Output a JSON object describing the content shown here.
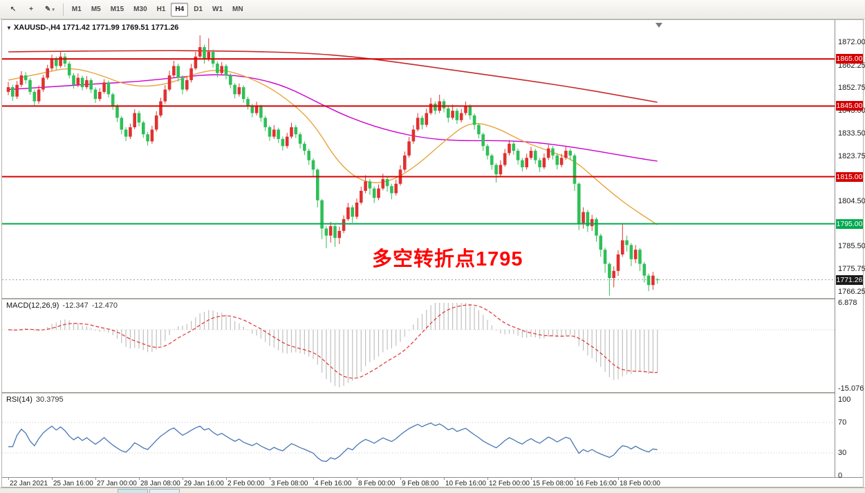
{
  "toolbar": {
    "tools": [
      {
        "name": "pointer-tool",
        "glyph": "↖"
      },
      {
        "name": "crosshair-tool",
        "glyph": "+"
      },
      {
        "name": "draw-tool",
        "glyph": "✎"
      }
    ],
    "timeframes": [
      "M1",
      "M5",
      "M15",
      "M30",
      "H1",
      "H4",
      "D1",
      "W1",
      "MN"
    ],
    "active_timeframe": "H4"
  },
  "chart_data": {
    "type": "candlestick",
    "symbol": "XAUUSD-",
    "timeframe": "H4",
    "title": "XAUUSD-,H4 1771.42 1771.99 1769.51 1771.26",
    "current": {
      "open": 1771.42,
      "high": 1771.99,
      "low": 1769.51,
      "close": 1771.26
    },
    "up_color": "#e03030",
    "down_color": "#2fbf57",
    "candles": [
      [
        1851,
        1855.2,
        1849.6,
        1853
      ],
      [
        1853,
        1854,
        1847.2,
        1849
      ],
      [
        1849,
        1855.6,
        1848,
        1854
      ],
      [
        1854,
        1859.8,
        1853.1,
        1858
      ],
      [
        1858,
        1859.4,
        1854.5,
        1856
      ],
      [
        1856,
        1856.9,
        1849.8,
        1851
      ],
      [
        1851,
        1852,
        1845.3,
        1847
      ],
      [
        1847,
        1853.7,
        1846,
        1852
      ],
      [
        1852,
        1858.2,
        1851,
        1857
      ],
      [
        1857,
        1862.5,
        1856.2,
        1861
      ],
      [
        1861,
        1866.8,
        1860,
        1865
      ],
      [
        1865,
        1866,
        1860.4,
        1862
      ],
      [
        1862,
        1868.3,
        1861.2,
        1866
      ],
      [
        1866,
        1867.5,
        1861.5,
        1863
      ],
      [
        1863,
        1864,
        1856.7,
        1858
      ],
      [
        1858,
        1859,
        1852.4,
        1854
      ],
      [
        1854,
        1858.8,
        1853,
        1857
      ],
      [
        1857,
        1857.9,
        1851.6,
        1853
      ],
      [
        1853,
        1857.7,
        1852.2,
        1856
      ],
      [
        1856,
        1856.8,
        1850.5,
        1852
      ],
      [
        1852,
        1852.9,
        1846.3,
        1848
      ],
      [
        1848,
        1852.6,
        1847,
        1851
      ],
      [
        1851,
        1856.4,
        1850.2,
        1855
      ],
      [
        1855,
        1855.8,
        1848.6,
        1850
      ],
      [
        1850,
        1850.7,
        1843.4,
        1845
      ],
      [
        1845,
        1845.9,
        1838.2,
        1840
      ],
      [
        1840,
        1840.8,
        1833,
        1835
      ],
      [
        1835,
        1836,
        1830.1,
        1832
      ],
      [
        1832,
        1837.5,
        1831,
        1836
      ],
      [
        1836,
        1843.6,
        1835.2,
        1842
      ],
      [
        1842,
        1843,
        1836.4,
        1838
      ],
      [
        1838,
        1838.7,
        1831.5,
        1833
      ],
      [
        1833,
        1834,
        1828.2,
        1830
      ],
      [
        1830,
        1836.6,
        1829,
        1835
      ],
      [
        1835,
        1842.8,
        1834.1,
        1841
      ],
      [
        1841,
        1848.5,
        1840.2,
        1847
      ],
      [
        1847,
        1853.9,
        1846,
        1852
      ],
      [
        1852,
        1860,
        1851.3,
        1858
      ],
      [
        1858,
        1864.2,
        1857,
        1862
      ],
      [
        1862,
        1863,
        1855.4,
        1857
      ],
      [
        1857,
        1858,
        1850,
        1852
      ],
      [
        1852,
        1857.8,
        1851.2,
        1856
      ],
      [
        1856,
        1862.9,
        1855,
        1861
      ],
      [
        1861,
        1868,
        1860.3,
        1866
      ],
      [
        1866,
        1875,
        1865.2,
        1870
      ],
      [
        1870,
        1871,
        1863,
        1865
      ],
      [
        1865,
        1873.8,
        1864,
        1868
      ],
      [
        1868,
        1869,
        1861.4,
        1863
      ],
      [
        1863,
        1864,
        1857.2,
        1859
      ],
      [
        1859,
        1863.7,
        1858,
        1862
      ],
      [
        1862,
        1862.8,
        1856.3,
        1858
      ],
      [
        1858,
        1858.9,
        1852.5,
        1854
      ],
      [
        1854,
        1854.7,
        1848.2,
        1850
      ],
      [
        1850,
        1854.6,
        1849,
        1853
      ],
      [
        1853,
        1853.8,
        1846.4,
        1848
      ],
      [
        1848,
        1849,
        1843.5,
        1845
      ],
      [
        1845,
        1846,
        1840.2,
        1842
      ],
      [
        1842,
        1846.8,
        1841,
        1845
      ],
      [
        1845,
        1845.6,
        1838.3,
        1840
      ],
      [
        1840,
        1840.9,
        1834.4,
        1836
      ],
      [
        1836,
        1836.7,
        1830.2,
        1832
      ],
      [
        1832,
        1836.9,
        1831,
        1835
      ],
      [
        1835,
        1835.8,
        1829.3,
        1831
      ],
      [
        1831,
        1832,
        1826.1,
        1828
      ],
      [
        1828,
        1833.6,
        1827,
        1832
      ],
      [
        1832,
        1837.9,
        1831.2,
        1836
      ],
      [
        1836,
        1837,
        1831.4,
        1833
      ],
      [
        1833,
        1833.8,
        1827,
        1829
      ],
      [
        1829,
        1830,
        1824.2,
        1826
      ],
      [
        1826,
        1826.9,
        1820,
        1822
      ],
      [
        1822,
        1822.8,
        1815.3,
        1818
      ],
      [
        1818,
        1818.5,
        1802,
        1805
      ],
      [
        1805,
        1805.5,
        1788.5,
        1793
      ],
      [
        1793,
        1794,
        1784.6,
        1790
      ],
      [
        1790,
        1795.8,
        1787,
        1794
      ],
      [
        1794,
        1794.9,
        1785.2,
        1789
      ],
      [
        1789,
        1793.8,
        1786.4,
        1792
      ],
      [
        1792,
        1798.6,
        1791,
        1797
      ],
      [
        1797,
        1803.9,
        1796.2,
        1802
      ],
      [
        1802,
        1803,
        1795.5,
        1798
      ],
      [
        1798,
        1805.7,
        1797,
        1804
      ],
      [
        1804,
        1810.8,
        1803.2,
        1809
      ],
      [
        1809,
        1815.6,
        1808,
        1813
      ],
      [
        1813,
        1814,
        1807.3,
        1810
      ],
      [
        1810,
        1810.9,
        1803.8,
        1806
      ],
      [
        1806,
        1811.7,
        1805,
        1810
      ],
      [
        1810,
        1816.3,
        1809.2,
        1814
      ],
      [
        1814,
        1815,
        1808.6,
        1811
      ],
      [
        1811,
        1812,
        1805.4,
        1808
      ],
      [
        1808,
        1813.8,
        1807,
        1812
      ],
      [
        1812,
        1819.9,
        1811.2,
        1818
      ],
      [
        1818,
        1825.7,
        1817,
        1824
      ],
      [
        1824,
        1831.8,
        1823.1,
        1830
      ],
      [
        1830,
        1836.9,
        1829,
        1835
      ],
      [
        1835,
        1842,
        1834.2,
        1840
      ],
      [
        1840,
        1841,
        1835.1,
        1837
      ],
      [
        1837,
        1843.9,
        1836,
        1842
      ],
      [
        1842,
        1848.5,
        1841.2,
        1846
      ],
      [
        1846,
        1847,
        1841.4,
        1843
      ],
      [
        1843,
        1849.8,
        1842,
        1847
      ],
      [
        1847,
        1848,
        1842.3,
        1844
      ],
      [
        1844,
        1844.8,
        1838,
        1840
      ],
      [
        1840,
        1845.6,
        1839.2,
        1843
      ],
      [
        1843,
        1844,
        1837.4,
        1839
      ],
      [
        1839,
        1843.8,
        1838,
        1842
      ],
      [
        1842,
        1846.9,
        1841.1,
        1845
      ],
      [
        1845,
        1845.8,
        1839.3,
        1841
      ],
      [
        1841,
        1841.9,
        1835,
        1837
      ],
      [
        1837,
        1837.7,
        1831.2,
        1833
      ],
      [
        1833,
        1833.8,
        1826,
        1828
      ],
      [
        1828,
        1828.9,
        1822.3,
        1824
      ],
      [
        1824,
        1824.7,
        1818,
        1820
      ],
      [
        1820,
        1820.8,
        1812.5,
        1816
      ],
      [
        1816,
        1821.9,
        1815,
        1820
      ],
      [
        1820,
        1826.8,
        1819.2,
        1825
      ],
      [
        1825,
        1830.6,
        1824,
        1829
      ],
      [
        1829,
        1830,
        1824.3,
        1826
      ],
      [
        1826,
        1826.9,
        1820.1,
        1822
      ],
      [
        1822,
        1823,
        1817.2,
        1819
      ],
      [
        1819,
        1824.8,
        1818,
        1823
      ],
      [
        1823,
        1827.7,
        1822.2,
        1826
      ],
      [
        1826,
        1826.8,
        1820.4,
        1822
      ],
      [
        1822,
        1823,
        1817,
        1819
      ],
      [
        1819,
        1824.9,
        1818.2,
        1823
      ],
      [
        1823,
        1828.6,
        1822,
        1827
      ],
      [
        1827,
        1828,
        1822.3,
        1824
      ],
      [
        1824,
        1824.9,
        1818.1,
        1820
      ],
      [
        1820,
        1824.7,
        1819,
        1823
      ],
      [
        1823,
        1827.9,
        1822.2,
        1826
      ],
      [
        1826,
        1827,
        1822,
        1824
      ],
      [
        1824,
        1824.8,
        1809,
        1812
      ],
      [
        1812,
        1812.6,
        1792.3,
        1795
      ],
      [
        1795,
        1802,
        1793,
        1800
      ],
      [
        1800,
        1800.9,
        1791.5,
        1794
      ],
      [
        1794,
        1798.8,
        1792,
        1797
      ],
      [
        1797,
        1797.7,
        1787.4,
        1790
      ],
      [
        1790,
        1790.8,
        1781,
        1784
      ],
      [
        1784,
        1784.9,
        1774.2,
        1778
      ],
      [
        1778,
        1778.6,
        1764.5,
        1772
      ],
      [
        1772,
        1776.9,
        1768,
        1775
      ],
      [
        1775,
        1783.8,
        1772.9,
        1782
      ],
      [
        1782,
        1795,
        1781,
        1788
      ],
      [
        1788,
        1790,
        1783.2,
        1786
      ],
      [
        1786,
        1786.8,
        1777,
        1780
      ],
      [
        1780,
        1786,
        1778.3,
        1784
      ],
      [
        1784,
        1784.7,
        1775,
        1778
      ],
      [
        1778,
        1778.8,
        1770.1,
        1773
      ],
      [
        1773,
        1773.9,
        1766.4,
        1769
      ],
      [
        1769,
        1774.6,
        1767,
        1773
      ],
      [
        1771.4,
        1772,
        1769.5,
        1771.3
      ]
    ],
    "x_labels": [
      "22 Jan 2021",
      "25 Jan 16:00",
      "27 Jan 00:00",
      "28 Jan 08:00",
      "29 Jan 16:00",
      "2 Feb 00:00",
      "3 Feb 08:00",
      "4 Feb 16:00",
      "8 Feb 00:00",
      "9 Feb 08:00",
      "10 Feb 16:00",
      "12 Feb 00:00",
      "15 Feb 08:00",
      "16 Feb 16:00",
      "18 Feb 00:00"
    ],
    "label_every": 10,
    "price_axis": {
      "top": 1881.5,
      "bottom": 1763.5,
      "ticks": [
        "1872.00",
        "1862.25",
        "1852.75",
        "1843.00",
        "1833.50",
        "1823.75",
        "1804.50",
        "1785.50",
        "1775.75",
        "1766.25"
      ]
    },
    "hlines": [
      {
        "price": 1865.0,
        "label": "1865.00",
        "color": "#d40000"
      },
      {
        "price": 1845.0,
        "label": "1845.00",
        "color": "#d40000"
      },
      {
        "price": 1815.0,
        "label": "1815.00",
        "color": "#d40000"
      },
      {
        "price": 1795.0,
        "label": "1795.00",
        "color": "#00a94f"
      }
    ],
    "current_price": {
      "value": 1771.26,
      "label": "1771.26",
      "badge_color": "#1a1a1a"
    },
    "moving_averages": [
      {
        "name": "ma-slow",
        "color": "#c62828",
        "width": 1.6,
        "points": [
          [
            0,
            1868
          ],
          [
            30,
            1868.6
          ],
          [
            50,
            1868.4
          ],
          [
            68,
            1867.6
          ],
          [
            80,
            1865.8
          ],
          [
            90,
            1863.4
          ],
          [
            100,
            1860.8
          ],
          [
            110,
            1858.2
          ],
          [
            120,
            1855.6
          ],
          [
            130,
            1852.8
          ],
          [
            140,
            1849.6
          ],
          [
            149,
            1846.6
          ]
        ]
      },
      {
        "name": "ma-medium",
        "color": "#cc00cc",
        "width": 1.4,
        "points": [
          [
            0,
            1852
          ],
          [
            10,
            1853.2
          ],
          [
            20,
            1854.4
          ],
          [
            30,
            1855.4
          ],
          [
            40,
            1857.4
          ],
          [
            48,
            1858.6
          ],
          [
            56,
            1857.2
          ],
          [
            64,
            1853.2
          ],
          [
            72,
            1845.5
          ],
          [
            80,
            1838.8
          ],
          [
            88,
            1834.2
          ],
          [
            96,
            1831.2
          ],
          [
            104,
            1830.2
          ],
          [
            112,
            1830.4
          ],
          [
            120,
            1829.8
          ],
          [
            128,
            1828
          ],
          [
            136,
            1825.6
          ],
          [
            144,
            1823
          ],
          [
            149,
            1821.6
          ]
        ]
      },
      {
        "name": "ma-fast",
        "color": "#e9a23b",
        "width": 1.4,
        "points": [
          [
            0,
            1856
          ],
          [
            8,
            1859
          ],
          [
            14,
            1861.4
          ],
          [
            20,
            1859
          ],
          [
            28,
            1853.2
          ],
          [
            36,
            1853.8
          ],
          [
            44,
            1859.6
          ],
          [
            50,
            1860.6
          ],
          [
            58,
            1855
          ],
          [
            64,
            1848
          ],
          [
            70,
            1838
          ],
          [
            76,
            1820
          ],
          [
            82,
            1812
          ],
          [
            88,
            1813
          ],
          [
            94,
            1820
          ],
          [
            100,
            1830
          ],
          [
            106,
            1838.6
          ],
          [
            112,
            1836
          ],
          [
            118,
            1830
          ],
          [
            124,
            1826
          ],
          [
            130,
            1822
          ],
          [
            136,
            1812
          ],
          [
            142,
            1803
          ],
          [
            149,
            1794.6
          ]
        ]
      }
    ],
    "annotation": {
      "text": "多空转折点1795",
      "color": "#ff0000"
    },
    "indicators": {
      "macd": {
        "label": "MACD(12,26,9)",
        "value_main": "-12.347",
        "value_signal": "-12.470",
        "fast": 12,
        "slow": 26,
        "signal": 9,
        "scale_top": 6.878,
        "scale_bottom": -15.076,
        "scale_labels": [
          {
            "text": "6.878",
            "value": 6.878
          },
          {
            "text": "-15.076",
            "value": -15.076
          }
        ],
        "histogram_color": "#bfbfbf",
        "signal_color": "#e03030"
      },
      "rsi": {
        "label": "RSI(14)",
        "value": "30.3795",
        "period": 14,
        "levels": [
          70,
          30
        ],
        "scale_labels": [
          {
            "text": "100",
            "value": 100
          },
          {
            "text": "70",
            "value": 70
          },
          {
            "text": "30",
            "value": 30
          },
          {
            "text": "0",
            "value": 0
          }
        ],
        "line_color": "#4876b4"
      }
    }
  }
}
